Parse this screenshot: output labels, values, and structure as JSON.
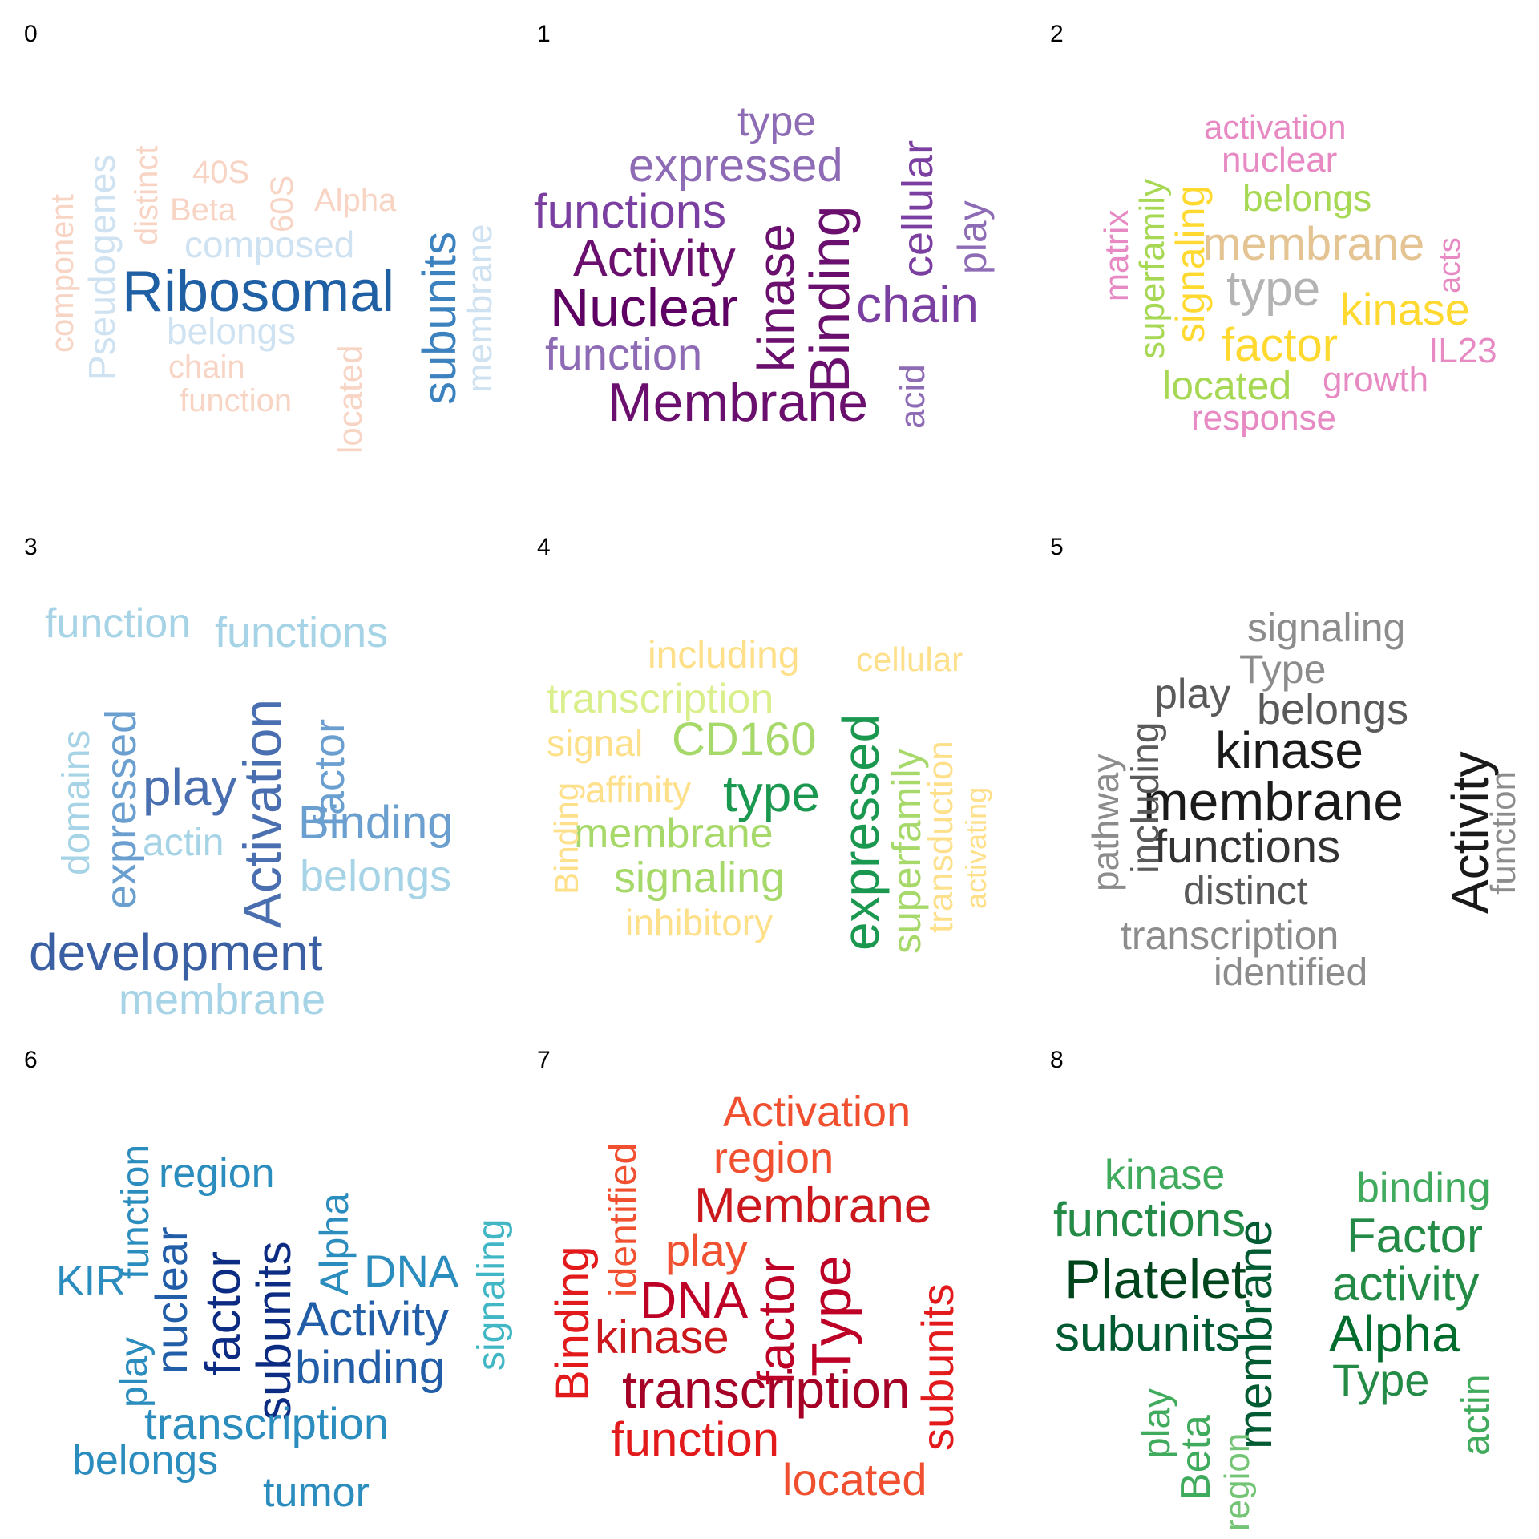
{
  "panels": [
    {
      "index": "0",
      "words": [
        {
          "text": "Ribosomal",
          "color": "#1f5fa3"
        },
        {
          "text": "subunits",
          "color": "#3b82bf"
        },
        {
          "text": "membrane",
          "color": "#cfe2f2"
        },
        {
          "text": "Pseudogenes",
          "color": "#cfe2f2"
        },
        {
          "text": "component",
          "color": "#f8d4c4"
        },
        {
          "text": "distinct",
          "color": "#f8d4c4"
        },
        {
          "text": "40S",
          "color": "#f8d4c4"
        },
        {
          "text": "60S",
          "color": "#f8d4c4"
        },
        {
          "text": "Beta",
          "color": "#f8d4c4"
        },
        {
          "text": "Alpha",
          "color": "#f8d4c4"
        },
        {
          "text": "composed",
          "color": "#cfe2f2"
        },
        {
          "text": "belongs",
          "color": "#cfe2f2"
        },
        {
          "text": "chain",
          "color": "#f8d4c4"
        },
        {
          "text": "function",
          "color": "#f8d4c4"
        },
        {
          "text": "located",
          "color": "#f8d4c4"
        }
      ]
    },
    {
      "index": "1",
      "words": [
        {
          "text": "type",
          "color": "#8e6bb5"
        },
        {
          "text": "expressed",
          "color": "#8e6bb5"
        },
        {
          "text": "functions",
          "color": "#7a3fa0"
        },
        {
          "text": "Activity",
          "color": "#6a0f6d"
        },
        {
          "text": "Nuclear",
          "color": "#5e0063"
        },
        {
          "text": "function",
          "color": "#8e6bb5"
        },
        {
          "text": "Membrane",
          "color": "#6a0f6d"
        },
        {
          "text": "kinase",
          "color": "#6a0f6d"
        },
        {
          "text": "Binding",
          "color": "#6a0f6d"
        },
        {
          "text": "cellular",
          "color": "#7a3fa0"
        },
        {
          "text": "play",
          "color": "#8e6bb5"
        },
        {
          "text": "chain",
          "color": "#7a3fa0"
        },
        {
          "text": "acid",
          "color": "#8e6bb5"
        }
      ]
    },
    {
      "index": "2",
      "words": [
        {
          "text": "activation",
          "color": "#e78ac3"
        },
        {
          "text": "nuclear",
          "color": "#e78ac3"
        },
        {
          "text": "belongs",
          "color": "#a6d854"
        },
        {
          "text": "membrane",
          "color": "#e5c494"
        },
        {
          "text": "type",
          "color": "#b3b3b3"
        },
        {
          "text": "kinase",
          "color": "#ffd92f"
        },
        {
          "text": "factor",
          "color": "#ffd92f"
        },
        {
          "text": "located",
          "color": "#a6d854"
        },
        {
          "text": "growth",
          "color": "#e78ac3"
        },
        {
          "text": "response",
          "color": "#e78ac3"
        },
        {
          "text": "IL23",
          "color": "#e78ac3"
        },
        {
          "text": "acts",
          "color": "#e78ac3"
        },
        {
          "text": "matrix",
          "color": "#e78ac3"
        },
        {
          "text": "superfamily",
          "color": "#a6d854"
        },
        {
          "text": "signaling",
          "color": "#ffd92f"
        }
      ]
    },
    {
      "index": "3",
      "words": [
        {
          "text": "function",
          "color": "#a6d4e6"
        },
        {
          "text": "functions",
          "color": "#a6d4e6"
        },
        {
          "text": "domains",
          "color": "#a6d4e6"
        },
        {
          "text": "expressed",
          "color": "#6a9fcf"
        },
        {
          "text": "play",
          "color": "#4a6fb0"
        },
        {
          "text": "Activation",
          "color": "#4a6fb0"
        },
        {
          "text": "factor",
          "color": "#6a9fcf"
        },
        {
          "text": "Binding",
          "color": "#6a9fcf"
        },
        {
          "text": "actin",
          "color": "#a6d4e6"
        },
        {
          "text": "belongs",
          "color": "#a6d4e6"
        },
        {
          "text": "development",
          "color": "#3b5fa3"
        },
        {
          "text": "membrane",
          "color": "#a6d4e6"
        }
      ]
    },
    {
      "index": "4",
      "words": [
        {
          "text": "including",
          "color": "#fee08b"
        },
        {
          "text": "cellular",
          "color": "#fee08b"
        },
        {
          "text": "transcription",
          "color": "#d9ef8b"
        },
        {
          "text": "signal",
          "color": "#fee08b"
        },
        {
          "text": "CD160",
          "color": "#a6d96a"
        },
        {
          "text": "affinity",
          "color": "#fee08b"
        },
        {
          "text": "type",
          "color": "#1a9850"
        },
        {
          "text": "membrane",
          "color": "#a6d96a"
        },
        {
          "text": "signaling",
          "color": "#a6d96a"
        },
        {
          "text": "inhibitory",
          "color": "#fee08b"
        },
        {
          "text": "Binding",
          "color": "#fee08b"
        },
        {
          "text": "expressed",
          "color": "#1a9850"
        },
        {
          "text": "superfamily",
          "color": "#a6d96a"
        },
        {
          "text": "transduction",
          "color": "#fee08b"
        },
        {
          "text": "activating",
          "color": "#fee08b"
        }
      ]
    },
    {
      "index": "5",
      "words": [
        {
          "text": "signaling",
          "color": "#8c8c8c"
        },
        {
          "text": "Type",
          "color": "#8c8c8c"
        },
        {
          "text": "play",
          "color": "#5a5a5a"
        },
        {
          "text": "belongs",
          "color": "#5a5a5a"
        },
        {
          "text": "kinase",
          "color": "#1a1a1a"
        },
        {
          "text": "membrane",
          "color": "#1a1a1a"
        },
        {
          "text": "functions",
          "color": "#333333"
        },
        {
          "text": "distinct",
          "color": "#5a5a5a"
        },
        {
          "text": "transcription",
          "color": "#8c8c8c"
        },
        {
          "text": "identified",
          "color": "#8c8c8c"
        },
        {
          "text": "pathway",
          "color": "#8c8c8c"
        },
        {
          "text": "including",
          "color": "#5a5a5a"
        },
        {
          "text": "Activity",
          "color": "#1a1a1a"
        },
        {
          "text": "function",
          "color": "#8c8c8c"
        }
      ]
    },
    {
      "index": "6",
      "words": [
        {
          "text": "function",
          "color": "#2b8cbe"
        },
        {
          "text": "region",
          "color": "#2b8cbe"
        },
        {
          "text": "KIR",
          "color": "#2b8cbe"
        },
        {
          "text": "play",
          "color": "#2b8cbe"
        },
        {
          "text": "nuclear",
          "color": "#225ea8"
        },
        {
          "text": "factor",
          "color": "#0c2c84"
        },
        {
          "text": "subunits",
          "color": "#0c2c84"
        },
        {
          "text": "Alpha",
          "color": "#2b8cbe"
        },
        {
          "text": "DNA",
          "color": "#2b8cbe"
        },
        {
          "text": "Activity",
          "color": "#225ea8"
        },
        {
          "text": "binding",
          "color": "#225ea8"
        },
        {
          "text": "signaling",
          "color": "#41b6c4"
        },
        {
          "text": "transcription",
          "color": "#2b8cbe"
        },
        {
          "text": "belongs",
          "color": "#2b8cbe"
        },
        {
          "text": "tumor",
          "color": "#2b8cbe"
        }
      ]
    },
    {
      "index": "7",
      "words": [
        {
          "text": "Activation",
          "color": "#f0502f"
        },
        {
          "text": "region",
          "color": "#f0502f"
        },
        {
          "text": "Membrane",
          "color": "#cb181d"
        },
        {
          "text": "identified",
          "color": "#f0502f"
        },
        {
          "text": "play",
          "color": "#f0502f"
        },
        {
          "text": "Binding",
          "color": "#e31a1c"
        },
        {
          "text": "DNA",
          "color": "#bd0026"
        },
        {
          "text": "kinase",
          "color": "#cb181d"
        },
        {
          "text": "factor",
          "color": "#bd0026"
        },
        {
          "text": "Type",
          "color": "#bd0026"
        },
        {
          "text": "subunits",
          "color": "#e31a1c"
        },
        {
          "text": "transcription",
          "color": "#a50026"
        },
        {
          "text": "function",
          "color": "#e31a1c"
        },
        {
          "text": "located",
          "color": "#f0502f"
        }
      ]
    },
    {
      "index": "8",
      "words": [
        {
          "text": "kinase",
          "color": "#41ab5d"
        },
        {
          "text": "functions",
          "color": "#238b45"
        },
        {
          "text": "Platelet",
          "color": "#00441b"
        },
        {
          "text": "subunits",
          "color": "#005a32"
        },
        {
          "text": "membrane",
          "color": "#005a32"
        },
        {
          "text": "binding",
          "color": "#41ab5d"
        },
        {
          "text": "Factor",
          "color": "#238b45"
        },
        {
          "text": "activity",
          "color": "#238b45"
        },
        {
          "text": "Alpha",
          "color": "#006d2c"
        },
        {
          "text": "Type",
          "color": "#238b45"
        },
        {
          "text": "actin",
          "color": "#41ab5d"
        },
        {
          "text": "play",
          "color": "#41ab5d"
        },
        {
          "text": "Beta",
          "color": "#41ab5d"
        },
        {
          "text": "region",
          "color": "#74c476"
        }
      ]
    }
  ]
}
